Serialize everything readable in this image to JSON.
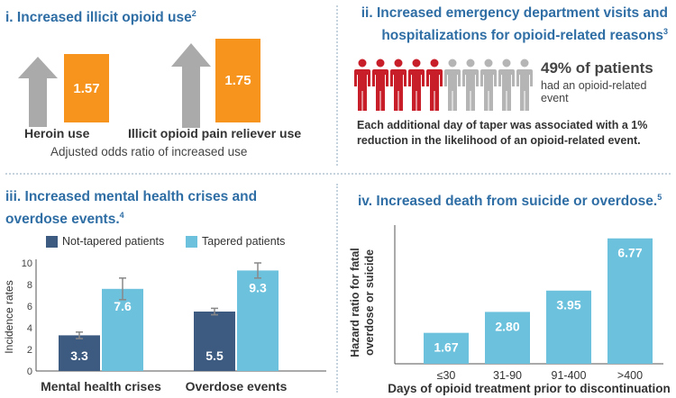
{
  "colors": {
    "title_blue": "#2f6ea5",
    "orange": "#f7941d",
    "grey": "#aaaaaa",
    "red": "#c81e2a",
    "dark_blue": "#3d5a80",
    "light_blue": "#6cc1dd"
  },
  "panel1": {
    "title": "i. Increased illicit opioid use",
    "title_sup": "2",
    "items": [
      {
        "label": "Heroin use",
        "value": "1.57",
        "icon": "up-arrow-icon"
      },
      {
        "label": "Illicit opioid pain reliever use",
        "value": "1.75",
        "icon": "up-arrow-icon"
      }
    ],
    "caption": "Adjusted odds ratio of increased use"
  },
  "panel2": {
    "title_line1": "ii. Increased emergency department visits and",
    "title_line2": "hospitalizations for opioid-related reasons",
    "title_sup": "3",
    "people_total": 10,
    "people_highlight": 5,
    "pct": "49% of patients",
    "pct_sub_line1": "had an opioid-related",
    "pct_sub_line2": "event",
    "note_line1": "Each additional day of taper was associated with a 1%",
    "note_line2": "reduction in the likelihood of an opioid-related event."
  },
  "panel3": {
    "title_line1": "iii. Increased mental health crises and",
    "title_line2": "overdose events.",
    "title_sup": "4"
  },
  "panel4": {
    "title": "iv. Increased death from suicide or overdose.",
    "title_sup": "5"
  },
  "chart_data": [
    {
      "type": "bar",
      "title": "Increased mental health crises and overdose events",
      "categories": [
        "Mental health crises",
        "Overdose events"
      ],
      "series": [
        {
          "name": "Not-tapered patients",
          "values": [
            3.3,
            5.5
          ],
          "labels": [
            "3.3",
            "5.5"
          ],
          "error_high": [
            3.6,
            5.8
          ],
          "error_low": [
            3.0,
            5.2
          ]
        },
        {
          "name": "Tapered patients",
          "values": [
            7.6,
            9.3
          ],
          "labels": [
            "7.6",
            "9.3"
          ],
          "error_high": [
            8.6,
            10.0
          ],
          "error_low": [
            6.6,
            8.6
          ]
        }
      ],
      "ylabel": "Incidence rates",
      "ylim": [
        0,
        10
      ],
      "yticks": [
        "0",
        "2",
        "4",
        "6",
        "8",
        "10"
      ],
      "legend": "top"
    },
    {
      "type": "bar",
      "title": "Increased death from suicide or overdose",
      "categories": [
        "≤30",
        "31-90",
        "91-400",
        ">400"
      ],
      "values": [
        1.67,
        2.8,
        3.95,
        6.77
      ],
      "labels": [
        "1.67",
        "2.80",
        "3.95",
        "6.77"
      ],
      "ylabel_line1": "Hazard ratio for fatal",
      "ylabel_line2": "overdose or suicide",
      "xlabel": "Days of opioid treatment prior to discontinuation",
      "ylim": [
        0,
        7
      ]
    }
  ]
}
